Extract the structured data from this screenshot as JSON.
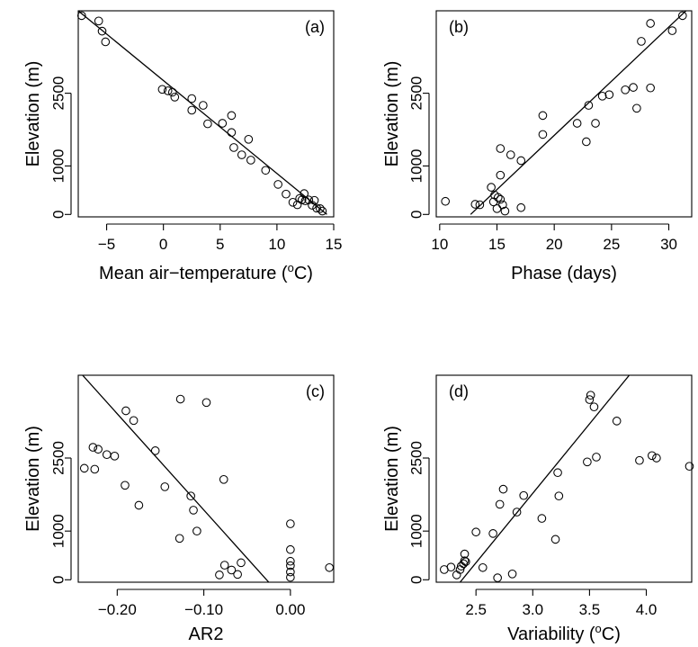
{
  "chart_data": [
    {
      "type": "scatter",
      "panel_label": "(a)",
      "xlabel": "Mean air−temperature (",
      "xlabel_sup": "o",
      "xlabel_tail": "C)",
      "ylabel": "Elevation (m)",
      "xlim": [
        -7.5,
        15
      ],
      "ylim": [
        -50,
        4200
      ],
      "xticks": [
        {
          "v": -5,
          "label": "−5"
        },
        {
          "v": 0,
          "label": "0"
        },
        {
          "v": 5,
          "label": "5"
        },
        {
          "v": 10,
          "label": "10"
        },
        {
          "v": 15,
          "label": "15"
        }
      ],
      "yticks": [
        {
          "v": 0,
          "label": "0"
        },
        {
          "v": 1000,
          "label": "1000"
        },
        {
          "v": 2500,
          "label": "2500"
        }
      ],
      "fit_line": {
        "x": [
          -7.5,
          14.4
        ],
        "y": [
          4200,
          0
        ]
      },
      "points": [
        [
          -7.2,
          4100
        ],
        [
          -5.7,
          3990
        ],
        [
          -5.4,
          3780
        ],
        [
          -5.1,
          3560
        ],
        [
          -0.1,
          2580
        ],
        [
          0.4,
          2550
        ],
        [
          0.8,
          2520
        ],
        [
          1.0,
          2420
        ],
        [
          2.5,
          2390
        ],
        [
          2.5,
          2150
        ],
        [
          3.5,
          2250
        ],
        [
          3.9,
          1870
        ],
        [
          5.2,
          1880
        ],
        [
          6.0,
          1690
        ],
        [
          6.0,
          2040
        ],
        [
          6.2,
          1380
        ],
        [
          6.9,
          1230
        ],
        [
          7.5,
          1550
        ],
        [
          7.7,
          1120
        ],
        [
          9.0,
          910
        ],
        [
          10.1,
          620
        ],
        [
          10.8,
          420
        ],
        [
          11.4,
          250
        ],
        [
          11.8,
          200
        ],
        [
          12.0,
          330
        ],
        [
          12.2,
          300
        ],
        [
          12.4,
          430
        ],
        [
          12.5,
          280
        ],
        [
          12.8,
          300
        ],
        [
          13.1,
          190
        ],
        [
          13.3,
          290
        ],
        [
          13.5,
          130
        ],
        [
          13.8,
          120
        ],
        [
          14.0,
          70
        ]
      ]
    },
    {
      "type": "scatter",
      "panel_label": "(b)",
      "xlabel": "Phase (days)",
      "ylabel": "Elevation (m)",
      "xlim": [
        9.7,
        32
      ],
      "ylim": [
        -50,
        4200
      ],
      "xticks": [
        {
          "v": 10,
          "label": "10"
        },
        {
          "v": 15,
          "label": "15"
        },
        {
          "v": 20,
          "label": "20"
        },
        {
          "v": 25,
          "label": "25"
        },
        {
          "v": 30,
          "label": "30"
        }
      ],
      "yticks": [
        {
          "v": 0,
          "label": "0"
        },
        {
          "v": 1000,
          "label": "1000"
        },
        {
          "v": 2500,
          "label": "2500"
        }
      ],
      "fit_line": {
        "x": [
          12.7,
          31.5
        ],
        "y": [
          0,
          4200
        ]
      },
      "points": [
        [
          10.5,
          270
        ],
        [
          13.1,
          210
        ],
        [
          13.5,
          200
        ],
        [
          14.5,
          560
        ],
        [
          14.7,
          260
        ],
        [
          14.8,
          400
        ],
        [
          15.0,
          120
        ],
        [
          15.1,
          350
        ],
        [
          15.3,
          310
        ],
        [
          15.3,
          810
        ],
        [
          15.3,
          1360
        ],
        [
          15.5,
          200
        ],
        [
          15.7,
          70
        ],
        [
          16.2,
          1230
        ],
        [
          17.1,
          140
        ],
        [
          17.1,
          1110
        ],
        [
          19.0,
          1650
        ],
        [
          19.0,
          2040
        ],
        [
          22.0,
          1880
        ],
        [
          22.8,
          1500
        ],
        [
          23.0,
          2250
        ],
        [
          23.6,
          1880
        ],
        [
          24.2,
          2440
        ],
        [
          24.8,
          2470
        ],
        [
          26.2,
          2570
        ],
        [
          26.9,
          2620
        ],
        [
          27.2,
          2190
        ],
        [
          27.6,
          3570
        ],
        [
          28.4,
          2610
        ],
        [
          28.4,
          3940
        ],
        [
          30.3,
          3790
        ],
        [
          31.2,
          4100
        ]
      ]
    },
    {
      "type": "scatter",
      "panel_label": "(c)",
      "xlabel": "AR2",
      "ylabel": "Elevation (m)",
      "xlim": [
        -0.245,
        0.05
      ],
      "ylim": [
        -50,
        4200
      ],
      "xticks": [
        {
          "v": -0.2,
          "label": "−0.20"
        },
        {
          "v": -0.1,
          "label": "−0.10"
        },
        {
          "v": 0.0,
          "label": "0.00"
        }
      ],
      "yticks": [
        {
          "v": 0,
          "label": "0"
        },
        {
          "v": 1000,
          "label": "1000"
        },
        {
          "v": 2500,
          "label": "2500"
        }
      ],
      "fit_line": {
        "x": [
          -0.24,
          -0.025
        ],
        "y": [
          4200,
          -50
        ]
      },
      "points": [
        [
          -0.238,
          2290
        ],
        [
          -0.228,
          2720
        ],
        [
          -0.226,
          2270
        ],
        [
          -0.222,
          2680
        ],
        [
          -0.212,
          2570
        ],
        [
          -0.203,
          2540
        ],
        [
          -0.191,
          1940
        ],
        [
          -0.19,
          3470
        ],
        [
          -0.181,
          3270
        ],
        [
          -0.175,
          1530
        ],
        [
          -0.156,
          2650
        ],
        [
          -0.145,
          1910
        ],
        [
          -0.128,
          850
        ],
        [
          -0.127,
          3710
        ],
        [
          -0.115,
          1720
        ],
        [
          -0.112,
          1430
        ],
        [
          -0.108,
          1000
        ],
        [
          -0.097,
          3640
        ],
        [
          -0.082,
          100
        ],
        [
          -0.077,
          2060
        ],
        [
          -0.076,
          300
        ],
        [
          -0.068,
          200
        ],
        [
          -0.061,
          110
        ],
        [
          -0.057,
          350
        ],
        [
          0.0,
          50
        ],
        [
          0.0,
          160
        ],
        [
          0.0,
          290
        ],
        [
          0.0,
          380
        ],
        [
          0.0,
          620
        ],
        [
          0.0,
          1150
        ],
        [
          0.045,
          250
        ]
      ]
    },
    {
      "type": "scatter",
      "panel_label": "(d)",
      "xlabel": "Variability (",
      "xlabel_sup": "o",
      "xlabel_tail": "C)",
      "ylabel": "Elevation (m)",
      "xlim": [
        2.15,
        4.4
      ],
      "ylim": [
        -50,
        4200
      ],
      "xticks": [
        {
          "v": 2.5,
          "label": "2.5"
        },
        {
          "v": 3.0,
          "label": "3.0"
        },
        {
          "v": 3.5,
          "label": "3.5"
        },
        {
          "v": 4.0,
          "label": "4.0"
        }
      ],
      "yticks": [
        {
          "v": 0,
          "label": "0"
        },
        {
          "v": 1000,
          "label": "1000"
        },
        {
          "v": 2500,
          "label": "2500"
        }
      ],
      "fit_line": {
        "x": [
          2.36,
          3.85
        ],
        "y": [
          -50,
          4200
        ]
      },
      "points": [
        [
          2.22,
          210
        ],
        [
          2.28,
          260
        ],
        [
          2.33,
          100
        ],
        [
          2.36,
          210
        ],
        [
          2.37,
          280
        ],
        [
          2.39,
          330
        ],
        [
          2.4,
          390
        ],
        [
          2.4,
          530
        ],
        [
          2.41,
          370
        ],
        [
          2.5,
          980
        ],
        [
          2.56,
          250
        ],
        [
          2.65,
          950
        ],
        [
          2.69,
          40
        ],
        [
          2.71,
          1550
        ],
        [
          2.74,
          1860
        ],
        [
          2.82,
          120
        ],
        [
          2.86,
          1390
        ],
        [
          2.92,
          1730
        ],
        [
          3.08,
          1260
        ],
        [
          3.2,
          830
        ],
        [
          3.22,
          2200
        ],
        [
          3.23,
          1720
        ],
        [
          3.48,
          2420
        ],
        [
          3.5,
          3700
        ],
        [
          3.51,
          3790
        ],
        [
          3.54,
          3550
        ],
        [
          3.56,
          2520
        ],
        [
          3.74,
          3260
        ],
        [
          3.94,
          2450
        ],
        [
          4.05,
          2550
        ],
        [
          4.09,
          2500
        ],
        [
          4.38,
          2330
        ]
      ]
    }
  ]
}
